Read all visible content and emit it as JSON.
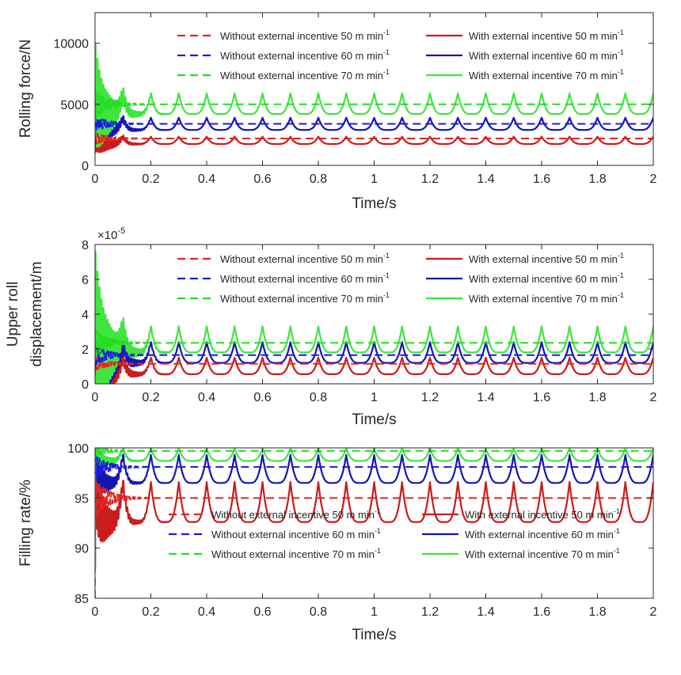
{
  "figure": {
    "panel_count": 3
  },
  "chart_data": [
    {
      "type": "line",
      "xlabel": "Time/s",
      "ylabel": "Rolling force/N",
      "xlim": [
        0,
        2
      ],
      "ylim": [
        0,
        12500
      ],
      "xticks": [
        "0",
        "0.2",
        "0.4",
        "0.6",
        "0.8",
        "1",
        "1.2",
        "1.4",
        "1.6",
        "1.8",
        "2"
      ],
      "yticks": [
        {
          "v": 0,
          "t": "0"
        },
        {
          "v": 5000,
          "t": "5000"
        },
        {
          "v": 10000,
          "t": "10000"
        }
      ],
      "axis_exponent": "",
      "grid": false,
      "legend_position": "top-right",
      "series": [
        {
          "name": "Without external incentive 50 m min",
          "name_sup": "-1",
          "color": "#e8221e",
          "dashed": true,
          "steady": 2200,
          "start": 1000,
          "init_amp": 500,
          "init_cycles": 14,
          "init_decay": 0.05
        },
        {
          "name": "With external incentive 50 m min",
          "name_sup": "-1",
          "color": "#c91c1c",
          "dashed": false,
          "base": 1750,
          "amp": 600,
          "period": 0.1,
          "start": 1200,
          "init_amp": 1200,
          "init_cycles": 14,
          "init_decay": 0.05
        },
        {
          "name": "Without external incentive 60 m min",
          "name_sup": "-1",
          "color": "#1a1ae6",
          "dashed": true,
          "steady": 3400,
          "start": 1500,
          "init_amp": 700,
          "init_cycles": 14,
          "init_decay": 0.05
        },
        {
          "name": "With external incentive 60 m min",
          "name_sup": "-1",
          "color": "#1515b4",
          "dashed": false,
          "base": 2900,
          "amp": 1000,
          "period": 0.1,
          "start": 2000,
          "init_amp": 1800,
          "init_cycles": 14,
          "init_decay": 0.05
        },
        {
          "name": "Without external incentive 70 m min",
          "name_sup": "-1",
          "color": "#22dd22",
          "dashed": true,
          "steady": 5000,
          "start": 2500,
          "init_amp": 1200,
          "init_cycles": 14,
          "init_decay": 0.05
        },
        {
          "name": "With external incentive 70 m min",
          "name_sup": "-1",
          "color": "#3ee63e",
          "dashed": false,
          "base": 4200,
          "amp": 1700,
          "period": 0.1,
          "start": 4000,
          "init_amp": 4500,
          "init_cycles": 14,
          "init_decay": 0.05
        }
      ]
    },
    {
      "type": "line",
      "xlabel": "Time/s",
      "ylabel": "Upper roll",
      "ylabel2": "displacement/m",
      "xlim": [
        0,
        2
      ],
      "ylim": [
        0,
        8
      ],
      "xticks": [
        "0",
        "0.2",
        "0.4",
        "0.6",
        "0.8",
        "1",
        "1.2",
        "1.4",
        "1.6",
        "1.8",
        "2"
      ],
      "yticks": [
        {
          "v": 0,
          "t": "0"
        },
        {
          "v": 2,
          "t": "2"
        },
        {
          "v": 4,
          "t": "4"
        },
        {
          "v": 6,
          "t": "6"
        },
        {
          "v": 8,
          "t": "8"
        }
      ],
      "axis_exponent": "×10",
      "axis_exponent_sup": "-5",
      "grid": false,
      "legend_position": "top-right",
      "series": [
        {
          "name": "Without external incentive 50 m min",
          "name_sup": "-1",
          "color": "#e8221e",
          "dashed": true,
          "steady": 1.15,
          "start": 0.5,
          "init_amp": 0.4,
          "init_cycles": 14,
          "init_decay": 0.05
        },
        {
          "name": "With external incentive 50 m min",
          "name_sup": "-1",
          "color": "#c91c1c",
          "dashed": false,
          "base": 0.55,
          "amp": 0.95,
          "period": 0.1,
          "start": 0.3,
          "init_amp": 2.6,
          "init_cycles": 14,
          "init_decay": 0.05
        },
        {
          "name": "Without external incentive 60 m min",
          "name_sup": "-1",
          "color": "#1a1ae6",
          "dashed": true,
          "steady": 1.65,
          "start": 0.9,
          "init_amp": 0.6,
          "init_cycles": 14,
          "init_decay": 0.05
        },
        {
          "name": "With external incentive 60 m min",
          "name_sup": "-1",
          "color": "#1515b4",
          "dashed": false,
          "base": 1.2,
          "amp": 1.2,
          "period": 0.1,
          "start": 0.8,
          "init_amp": 3.5,
          "init_cycles": 14,
          "init_decay": 0.05
        },
        {
          "name": "Without external incentive 70 m min",
          "name_sup": "-1",
          "color": "#22dd22",
          "dashed": true,
          "steady": 2.35,
          "start": 1.3,
          "init_amp": 0.8,
          "init_cycles": 14,
          "init_decay": 0.05
        },
        {
          "name": "With external incentive 70 m min",
          "name_sup": "-1",
          "color": "#3ee63e",
          "dashed": false,
          "base": 1.8,
          "amp": 1.5,
          "period": 0.1,
          "start": 1.5,
          "init_amp": 4.8,
          "init_cycles": 14,
          "init_decay": 0.05
        }
      ]
    },
    {
      "type": "line",
      "xlabel": "Time/s",
      "ylabel": "Filling rate/%",
      "xlim": [
        0,
        2
      ],
      "ylim": [
        85,
        100
      ],
      "xticks": [
        "0",
        "0.2",
        "0.4",
        "0.6",
        "0.8",
        "1",
        "1.2",
        "1.4",
        "1.6",
        "1.8",
        "2"
      ],
      "yticks": [
        {
          "v": 85,
          "t": "85"
        },
        {
          "v": 90,
          "t": "90"
        },
        {
          "v": 95,
          "t": "95"
        },
        {
          "v": 100,
          "t": "100"
        }
      ],
      "axis_exponent": "",
      "grid": false,
      "legend_position": "bottom-right",
      "series": [
        {
          "name": "Without external incentive 50 m min",
          "name_sup": "-1",
          "color": "#e8221e",
          "dashed": true,
          "steady": 95.0,
          "start": 85.0,
          "init_amp": 2.0,
          "init_cycles": 14,
          "init_decay": 0.05
        },
        {
          "name": "With external incentive 50 m min",
          "name_sup": "-1",
          "color": "#c91c1c",
          "dashed": false,
          "base": 92.6,
          "amp": 4.0,
          "period": 0.1,
          "start": 88.0,
          "init_amp": 4.0,
          "init_cycles": 14,
          "init_decay": 0.05
        },
        {
          "name": "Without external incentive 60 m min",
          "name_sup": "-1",
          "color": "#1a1ae6",
          "dashed": true,
          "steady": 98.1,
          "start": 85.0,
          "init_amp": 1.2,
          "init_cycles": 14,
          "init_decay": 0.05
        },
        {
          "name": "With external incentive 60 m min",
          "name_sup": "-1",
          "color": "#1515b4",
          "dashed": false,
          "base": 96.5,
          "amp": 2.8,
          "period": 0.1,
          "start": 88.0,
          "init_amp": 2.0,
          "init_cycles": 14,
          "init_decay": 0.05
        },
        {
          "name": "Without external incentive 70 m min",
          "name_sup": "-1",
          "color": "#22dd22",
          "dashed": true,
          "steady": 99.7,
          "start": 85.0,
          "init_amp": 0.5,
          "init_cycles": 14,
          "init_decay": 0.05
        },
        {
          "name": "With external incentive 70 m min",
          "name_sup": "-1",
          "color": "#3ee63e",
          "dashed": false,
          "base": 98.7,
          "amp": 1.25,
          "period": 0.1,
          "start": 88.0,
          "init_amp": 1.0,
          "init_cycles": 14,
          "init_decay": 0.05
        }
      ]
    }
  ]
}
